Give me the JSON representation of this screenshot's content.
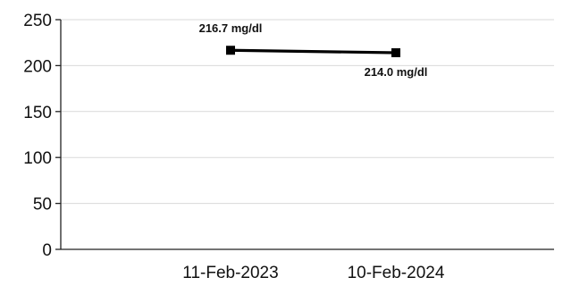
{
  "chart_data": {
    "type": "line",
    "title": "",
    "xlabel": "",
    "ylabel": "",
    "categories": [
      "11-Feb-2023",
      "10-Feb-2024"
    ],
    "ylim": [
      0,
      250
    ],
    "yticks": [
      0,
      50,
      100,
      150,
      200,
      250
    ],
    "grid": true,
    "legend": "none",
    "series": [
      {
        "values": [
          216.7,
          214.0
        ],
        "data_labels": [
          "216.7 mg/dl",
          "214.0 mg/dl"
        ],
        "color": "#000000"
      }
    ]
  }
}
